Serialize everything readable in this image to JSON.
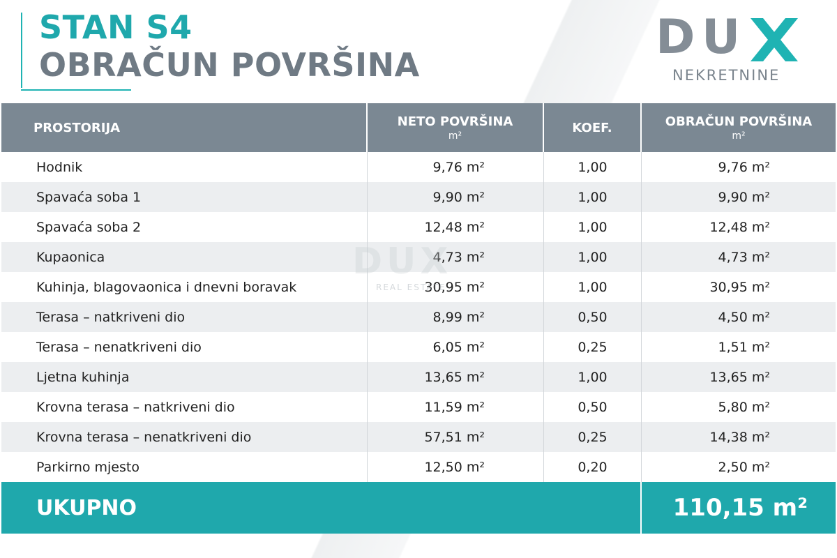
{
  "header": {
    "title_line1": "STAN S4",
    "title_line2": "OBRAČUN POVRŠINA"
  },
  "logo": {
    "letters_du": [
      "D",
      "U"
    ],
    "letter_x": "X",
    "subtitle": "NEKRETNINE"
  },
  "watermark": {
    "main": "DUX",
    "sub": "REAL ESTATE"
  },
  "table": {
    "columns": [
      {
        "label": "PROSTORIJA",
        "unit": ""
      },
      {
        "label": "NETO POVRŠINA",
        "unit": "m²"
      },
      {
        "label": "KOEF.",
        "unit": ""
      },
      {
        "label": "OBRAČUN POVRŠINA",
        "unit": "m²"
      }
    ],
    "rows": [
      {
        "room": "Hodnik",
        "net": "9,76 m²",
        "coef": "1,00",
        "calc": "9,76 m²"
      },
      {
        "room": "Spavaća soba 1",
        "net": "9,90 m²",
        "coef": "1,00",
        "calc": "9,90 m²"
      },
      {
        "room": "Spavaća soba 2",
        "net": "12,48 m²",
        "coef": "1,00",
        "calc": "12,48 m²"
      },
      {
        "room": "Kupaonica",
        "net": "4,73 m²",
        "coef": "1,00",
        "calc": "4,73 m²"
      },
      {
        "room": "Kuhinja, blagovaonica i dnevni boravak",
        "net": "30,95 m²",
        "coef": "1,00",
        "calc": "30,95 m²"
      },
      {
        "room": "Terasa – natkriveni dio",
        "net": "8,99 m²",
        "coef": "0,50",
        "calc": "4,50 m²"
      },
      {
        "room": "Terasa – nenatkriveni dio",
        "net": "6,05 m²",
        "coef": "0,25",
        "calc": "1,51 m²"
      },
      {
        "room": "Ljetna kuhinja",
        "net": "13,65 m²",
        "coef": "1,00",
        "calc": "13,65 m²"
      },
      {
        "room": "Krovna terasa – natkriveni dio",
        "net": "11,59 m²",
        "coef": "0,50",
        "calc": "5,80 m²"
      },
      {
        "room": "Krovna terasa – nenatkriveni dio",
        "net": "57,51 m²",
        "coef": "0,25",
        "calc": "14,38 m²"
      },
      {
        "room": "Parkirno mjesto",
        "net": "12,50 m²",
        "coef": "0,20",
        "calc": "2,50 m²"
      }
    ],
    "total_label": "UKUPNO",
    "total_value": "110,15 m²"
  },
  "colors": {
    "accent": "#1fa8ac",
    "header_gray": "#7b8893",
    "title_gray": "#6f7a84"
  }
}
